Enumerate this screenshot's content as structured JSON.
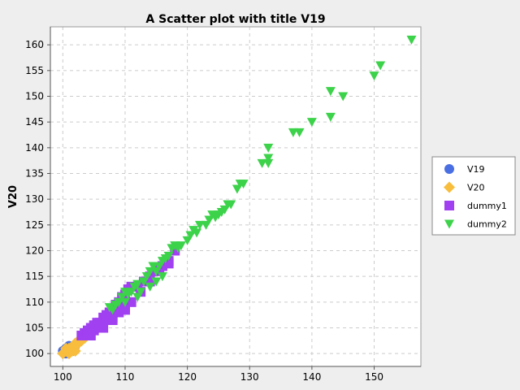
{
  "chart_data": {
    "type": "scatter",
    "title": "A Scatter plot with title V19",
    "xlabel": "",
    "ylabel": "V20",
    "xlim": [
      98,
      157.5
    ],
    "ylim": [
      97.5,
      163.5
    ],
    "x_ticks": [
      100,
      110,
      120,
      130,
      140,
      150
    ],
    "y_ticks": [
      100,
      105,
      110,
      115,
      120,
      125,
      130,
      135,
      140,
      145,
      150,
      155,
      160
    ],
    "grid": true,
    "legend_position": "right",
    "series": [
      {
        "name": "V19",
        "marker": "circle",
        "color": "#4a6fe3",
        "points": [
          [
            100,
            100.5
          ],
          [
            100.5,
            101
          ],
          [
            101,
            101.5
          ],
          [
            101.5,
            100.5
          ],
          [
            100.5,
            100
          ],
          [
            102,
            101.5
          ]
        ]
      },
      {
        "name": "V20",
        "marker": "diamond",
        "color": "#f8bd3c",
        "points": [
          [
            100,
            100
          ],
          [
            100.5,
            100.5
          ],
          [
            101,
            100
          ],
          [
            101,
            101
          ],
          [
            101.5,
            101
          ],
          [
            102,
            101.5
          ],
          [
            102,
            102
          ],
          [
            102.5,
            102
          ],
          [
            102.5,
            102.5
          ],
          [
            103,
            102.5
          ],
          [
            103,
            103
          ],
          [
            101.5,
            100.5
          ],
          [
            100.5,
            101
          ],
          [
            102,
            100.5
          ],
          [
            103.5,
            103
          ]
        ]
      },
      {
        "name": "dummy1",
        "marker": "square",
        "color": "#a040f0",
        "points": [
          [
            103,
            103.5
          ],
          [
            103.5,
            104
          ],
          [
            104,
            104.5
          ],
          [
            104.5,
            105
          ],
          [
            105,
            105.5
          ],
          [
            105.5,
            106
          ],
          [
            106,
            106
          ],
          [
            106.5,
            107
          ],
          [
            107,
            107.5
          ],
          [
            107.5,
            108
          ],
          [
            108,
            108.5
          ],
          [
            108.5,
            109.5
          ],
          [
            109,
            110
          ],
          [
            109.5,
            111
          ],
          [
            110,
            111.5
          ],
          [
            110.5,
            112.5
          ],
          [
            111,
            113
          ],
          [
            104,
            104
          ],
          [
            105,
            104.5
          ],
          [
            106,
            105.5
          ],
          [
            107,
            106.5
          ],
          [
            108,
            107
          ],
          [
            109,
            108
          ],
          [
            110,
            109
          ],
          [
            112,
            113
          ],
          [
            113,
            114
          ],
          [
            114,
            115
          ],
          [
            115,
            116.5
          ],
          [
            116,
            117
          ],
          [
            117,
            118
          ],
          [
            118,
            120
          ],
          [
            104.5,
            103.5
          ],
          [
            106.5,
            105
          ],
          [
            108,
            106.5
          ],
          [
            110,
            108.5
          ],
          [
            111,
            110
          ],
          [
            112.5,
            112
          ],
          [
            114,
            114
          ],
          [
            115.5,
            116
          ],
          [
            117,
            117.5
          ]
        ]
      },
      {
        "name": "dummy2",
        "marker": "triangle-down",
        "color": "#3cd24a",
        "points": [
          [
            107.5,
            109
          ],
          [
            108,
            108.5
          ],
          [
            108.5,
            109.5
          ],
          [
            109,
            110
          ],
          [
            109.5,
            111
          ],
          [
            110,
            110
          ],
          [
            110,
            112
          ],
          [
            110.5,
            111.5
          ],
          [
            111,
            112
          ],
          [
            111.5,
            113
          ],
          [
            112,
            113.5
          ],
          [
            112,
            111
          ],
          [
            112.5,
            112
          ],
          [
            113,
            114
          ],
          [
            113.5,
            115
          ],
          [
            114,
            116
          ],
          [
            114,
            113
          ],
          [
            114.5,
            117
          ],
          [
            115,
            116
          ],
          [
            115,
            114
          ],
          [
            115.5,
            117
          ],
          [
            116,
            118
          ],
          [
            116,
            115
          ],
          [
            116.5,
            118.5
          ],
          [
            117,
            119
          ],
          [
            117.5,
            120.5
          ],
          [
            118,
            121
          ],
          [
            118.5,
            120.5
          ],
          [
            119,
            121
          ],
          [
            120,
            122
          ],
          [
            120.5,
            123
          ],
          [
            121,
            124
          ],
          [
            121.5,
            123.5
          ],
          [
            122,
            125
          ],
          [
            123,
            125
          ],
          [
            123.5,
            126
          ],
          [
            124,
            127
          ],
          [
            124.5,
            126.5
          ],
          [
            125,
            127
          ],
          [
            125.5,
            127.5
          ],
          [
            126,
            128
          ],
          [
            126.5,
            129
          ],
          [
            127,
            129
          ],
          [
            128,
            132
          ],
          [
            128.5,
            133
          ],
          [
            129,
            133
          ],
          [
            132,
            137
          ],
          [
            133,
            137
          ],
          [
            133,
            138
          ],
          [
            133,
            140
          ],
          [
            137,
            143
          ],
          [
            138,
            143
          ],
          [
            140,
            145
          ],
          [
            143,
            146
          ],
          [
            143,
            151
          ],
          [
            145,
            150
          ],
          [
            150,
            154
          ],
          [
            151,
            156
          ],
          [
            156,
            161
          ]
        ]
      }
    ]
  }
}
